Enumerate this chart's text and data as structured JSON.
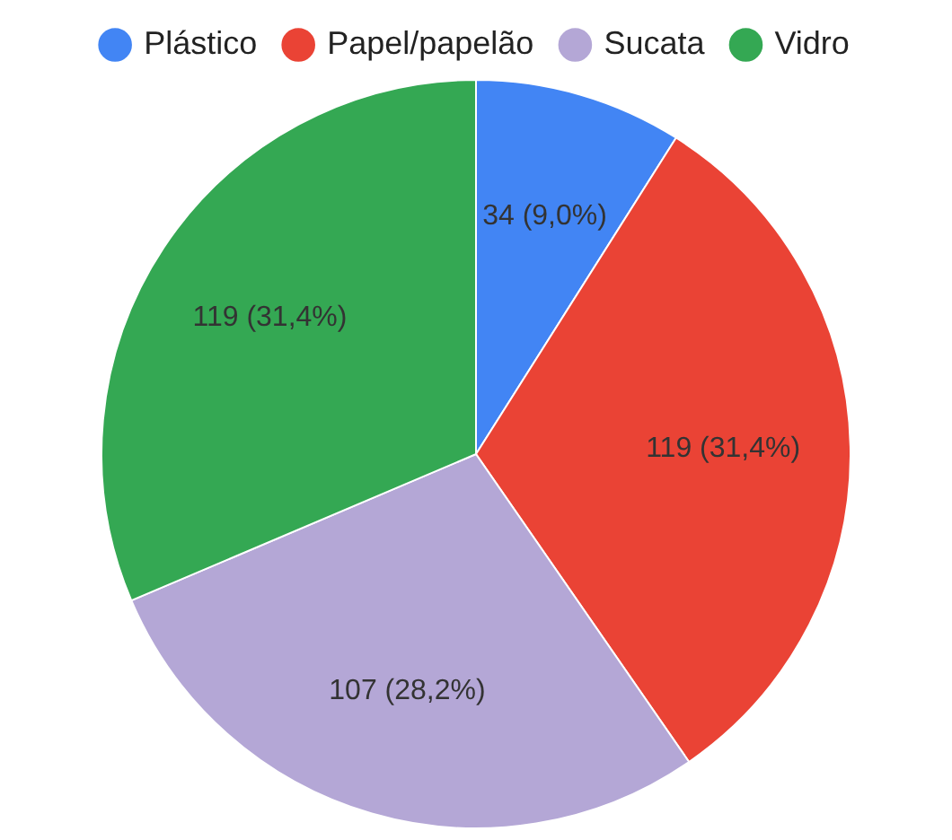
{
  "chart_data": {
    "type": "pie",
    "categories": [
      "Plástico",
      "Papel/papelão",
      "Sucata",
      "Vidro"
    ],
    "values": [
      34,
      119,
      107,
      119
    ],
    "colors": [
      "#4285f4",
      "#ea4335",
      "#b4a7d6",
      "#34a853"
    ],
    "value_labels": [
      "34 (9,0%)",
      "119 (31,4%)",
      "107 (28,2%)",
      "119 (31,4%)"
    ],
    "legend": "top"
  }
}
